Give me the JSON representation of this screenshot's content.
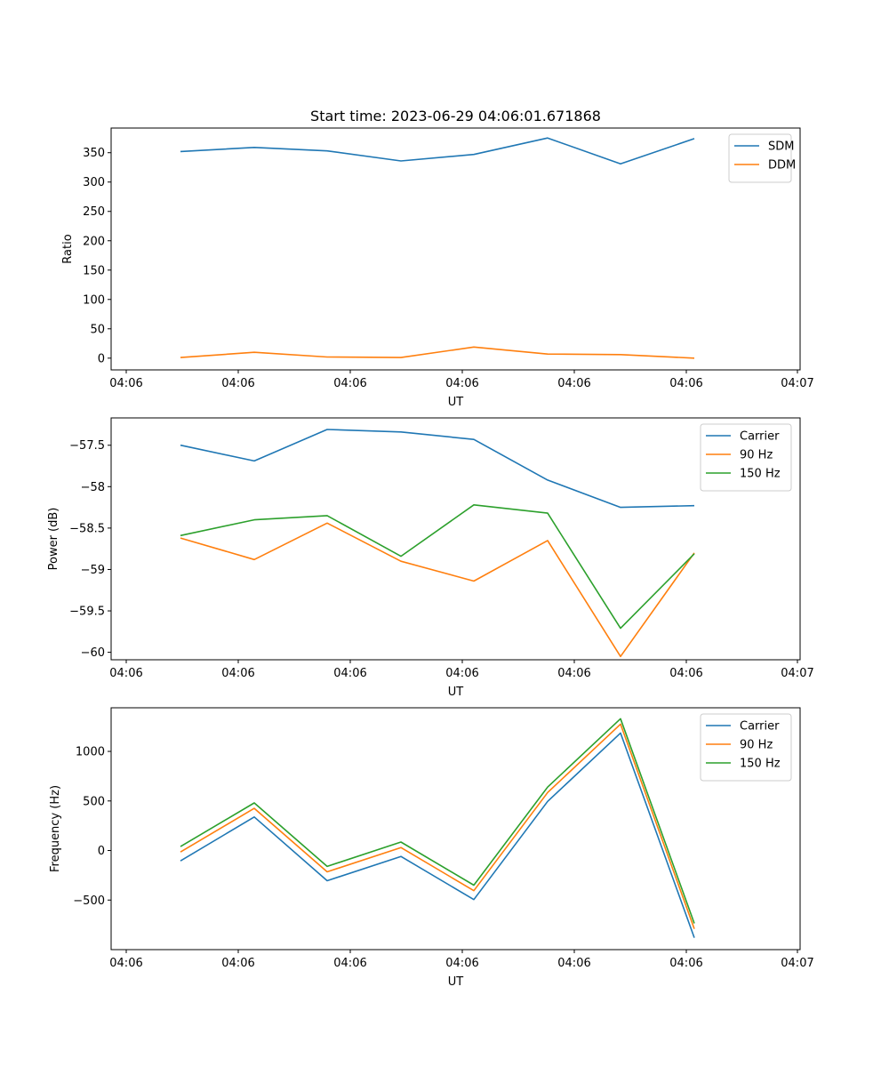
{
  "chart_data": [
    {
      "type": "line",
      "title": "Start time: 2023-06-29 04:06:01.671868",
      "xlabel": "UT",
      "ylabel": "Ratio",
      "x_tick_labels": [
        "04:06",
        "04:06",
        "04:06",
        "04:06",
        "04:06",
        "04:06",
        "04:07"
      ],
      "ylim": [
        -20,
        392
      ],
      "y_ticks": [
        0,
        50,
        100,
        150,
        200,
        250,
        300,
        350
      ],
      "grid": false,
      "legend_position": "upper right",
      "series": [
        {
          "name": "SDM",
          "color": "#1f77b4",
          "values": [
            352,
            359,
            353,
            336,
            347,
            375,
            331,
            374
          ]
        },
        {
          "name": "DDM",
          "color": "#ff7f0e",
          "values": [
            1,
            10,
            2,
            1,
            19,
            7,
            6,
            0
          ]
        }
      ]
    },
    {
      "type": "line",
      "title": "",
      "xlabel": "UT",
      "ylabel": "Power (dB)",
      "x_tick_labels": [
        "04:06",
        "04:06",
        "04:06",
        "04:06",
        "04:06",
        "04:06",
        "04:07"
      ],
      "ylim": [
        -60.09,
        -57.17
      ],
      "y_ticks": [
        -57.5,
        -58.0,
        -58.5,
        -59.0,
        -59.5,
        -60.0
      ],
      "grid": false,
      "legend_position": "upper right",
      "series": [
        {
          "name": "Carrier",
          "color": "#1f77b4",
          "values": [
            -57.5,
            -57.69,
            -57.31,
            -57.34,
            -57.43,
            -57.92,
            -58.25,
            -58.23
          ]
        },
        {
          "name": "90 Hz",
          "color": "#ff7f0e",
          "values": [
            -58.62,
            -58.88,
            -58.44,
            -58.9,
            -59.14,
            -58.65,
            -60.05,
            -58.8
          ]
        },
        {
          "name": "150 Hz",
          "color": "#2ca02c",
          "values": [
            -58.59,
            -58.4,
            -58.35,
            -58.84,
            -58.22,
            -58.32,
            -59.71,
            -58.81
          ]
        }
      ]
    },
    {
      "type": "line",
      "title": "",
      "xlabel": "UT",
      "ylabel": "Frequency (Hz)",
      "x_tick_labels": [
        "04:06",
        "04:06",
        "04:06",
        "04:06",
        "04:06",
        "04:06",
        "04:07"
      ],
      "ylim": [
        -1000,
        1440
      ],
      "y_ticks": [
        1000,
        500,
        0,
        -500
      ],
      "grid": false,
      "legend_position": "upper right",
      "series": [
        {
          "name": "Carrier",
          "color": "#1f77b4",
          "values": [
            -105,
            338,
            -305,
            -60,
            -495,
            495,
            1185,
            -880
          ]
        },
        {
          "name": "90 Hz",
          "color": "#ff7f0e",
          "values": [
            -15,
            425,
            -215,
            30,
            -405,
            585,
            1275,
            -790
          ]
        },
        {
          "name": "150 Hz",
          "color": "#2ca02c",
          "values": [
            40,
            480,
            -160,
            85,
            -350,
            640,
            1330,
            -735
          ]
        }
      ]
    }
  ]
}
